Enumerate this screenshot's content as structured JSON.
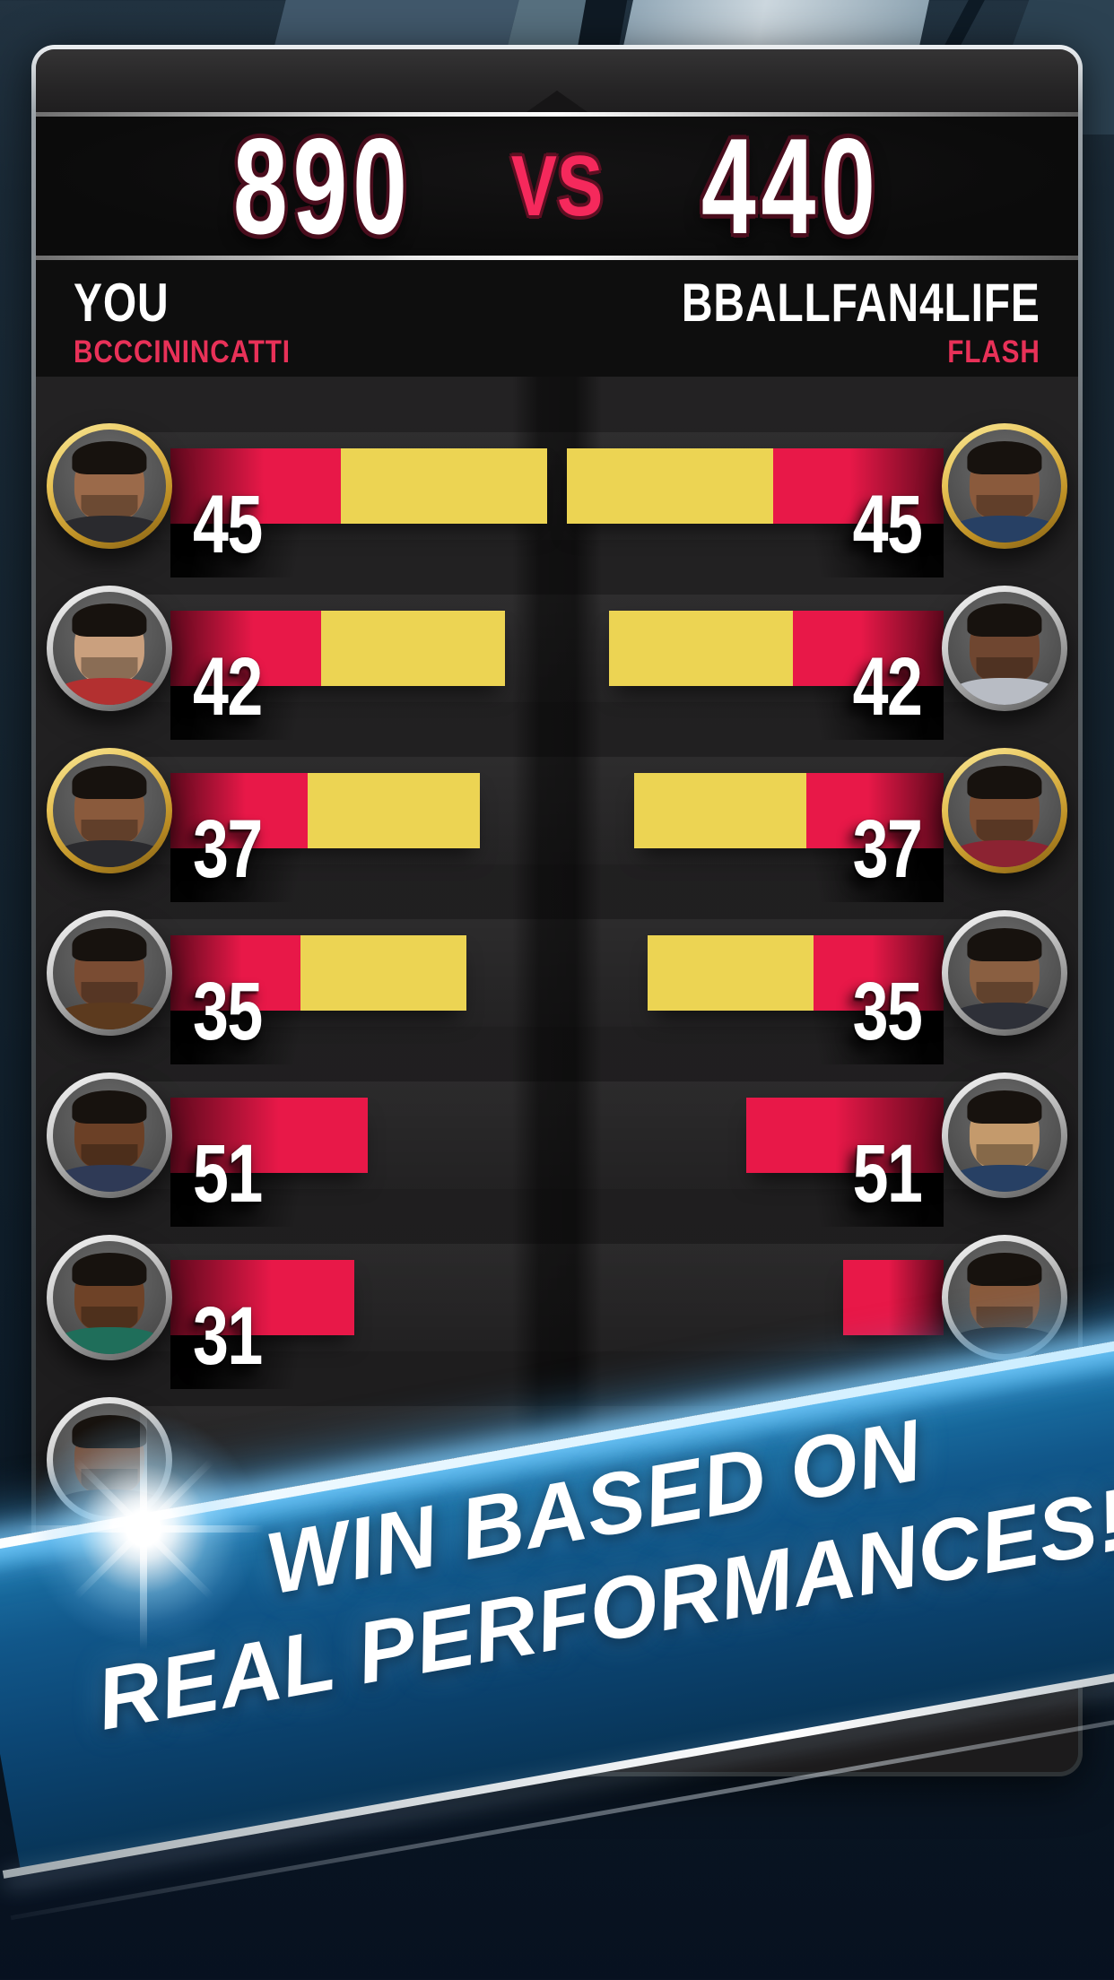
{
  "scoreboard": {
    "left_score": "890",
    "vs_label": "VS",
    "right_score": "440",
    "left_name": "YOU",
    "left_username": "BCCCININCATTI",
    "right_name": "BBALLFAN4LIFE",
    "right_username": "FLASH"
  },
  "banner": {
    "line1": "WIN BASED ON",
    "line2": "REAL PERFORMANCES!"
  },
  "colors": {
    "accent_red": "#e81848",
    "accent_yellow": "#ecd453",
    "accent_pink": "#e83158",
    "score_outline_maroon": "#4a0d1d",
    "banner_blue": "#0c4674",
    "gold_ring": "#e7c255",
    "silver_ring": "#cfcfcf"
  },
  "matchups": {
    "description": "head-to-head fantasy player scores, left column vs right column",
    "rows": [
      {
        "left_score": "45",
        "right_score": "45",
        "ring": "gold",
        "left_bar": {
          "red": 190,
          "yellow": 230
        },
        "right_bar": {
          "red": 190,
          "yellow": 230
        },
        "left_skin": "#9b6a4a",
        "right_skin": "#8a5a3c",
        "left_jersey": "#2a2a2e",
        "right_jersey": "#274064"
      },
      {
        "left_score": "42",
        "right_score": "42",
        "ring": "silver",
        "left_bar": {
          "red": 168,
          "yellow": 205
        },
        "right_bar": {
          "red": 168,
          "yellow": 205
        },
        "left_skin": "#caa07e",
        "right_skin": "#6f4630",
        "left_jersey": "#b33030",
        "right_jersey": "#b8bcc4"
      },
      {
        "left_score": "37",
        "right_score": "37",
        "ring": "gold",
        "left_bar": {
          "red": 153,
          "yellow": 192
        },
        "right_bar": {
          "red": 153,
          "yellow": 192
        },
        "left_skin": "#8a5a3c",
        "right_skin": "#7d4e33",
        "left_jersey": "#2a2a2e",
        "right_jersey": "#8c2332"
      },
      {
        "left_score": "35",
        "right_score": "35",
        "ring": "silver",
        "left_bar": {
          "red": 145,
          "yellow": 185
        },
        "right_bar": {
          "red": 145,
          "yellow": 185
        },
        "left_skin": "#7a4c33",
        "right_skin": "#8a5f41",
        "left_jersey": "#5c3a1e",
        "right_jersey": "#2e3038"
      },
      {
        "left_score": "51",
        "right_score": "51",
        "ring": "silver",
        "left_bar": {
          "red": 220,
          "yellow": 0
        },
        "right_bar": {
          "red": 220,
          "yellow": 0
        },
        "left_skin": "#6b4026",
        "right_skin": "#c49a6c",
        "left_jersey": "#2f3a56",
        "right_jersey": "#274064"
      },
      {
        "left_score": "31",
        "right_score": "",
        "ring": "silver",
        "left_bar": {
          "red": 205,
          "yellow": 0
        },
        "right_bar": {
          "red": 112,
          "yellow": 0
        },
        "left_skin": "#6e4227",
        "right_skin": "#8a5a3c",
        "left_jersey": "#1f6e5a",
        "right_jersey": "#2a2a2e"
      },
      {
        "left_score": "",
        "right_score": "",
        "ring": "silver",
        "left_bar": {
          "red": 0,
          "yellow": 0
        },
        "right_bar": {
          "red": 0,
          "yellow": 0
        },
        "left_skin": "#7a4c33",
        "right_skin": "#6b4026",
        "left_jersey": "#2a2a2e",
        "right_jersey": "#2a2a2e"
      },
      {
        "left_score": "",
        "right_score": "",
        "ring": "silver",
        "left_bar": {
          "red": 0,
          "yellow": 0
        },
        "right_bar": {
          "red": 0,
          "yellow": 0
        },
        "left_skin": "#8a5a3c",
        "right_skin": "#7a4c33",
        "left_jersey": "#2a2a2e",
        "right_jersey": "#2a2a2e"
      }
    ]
  }
}
